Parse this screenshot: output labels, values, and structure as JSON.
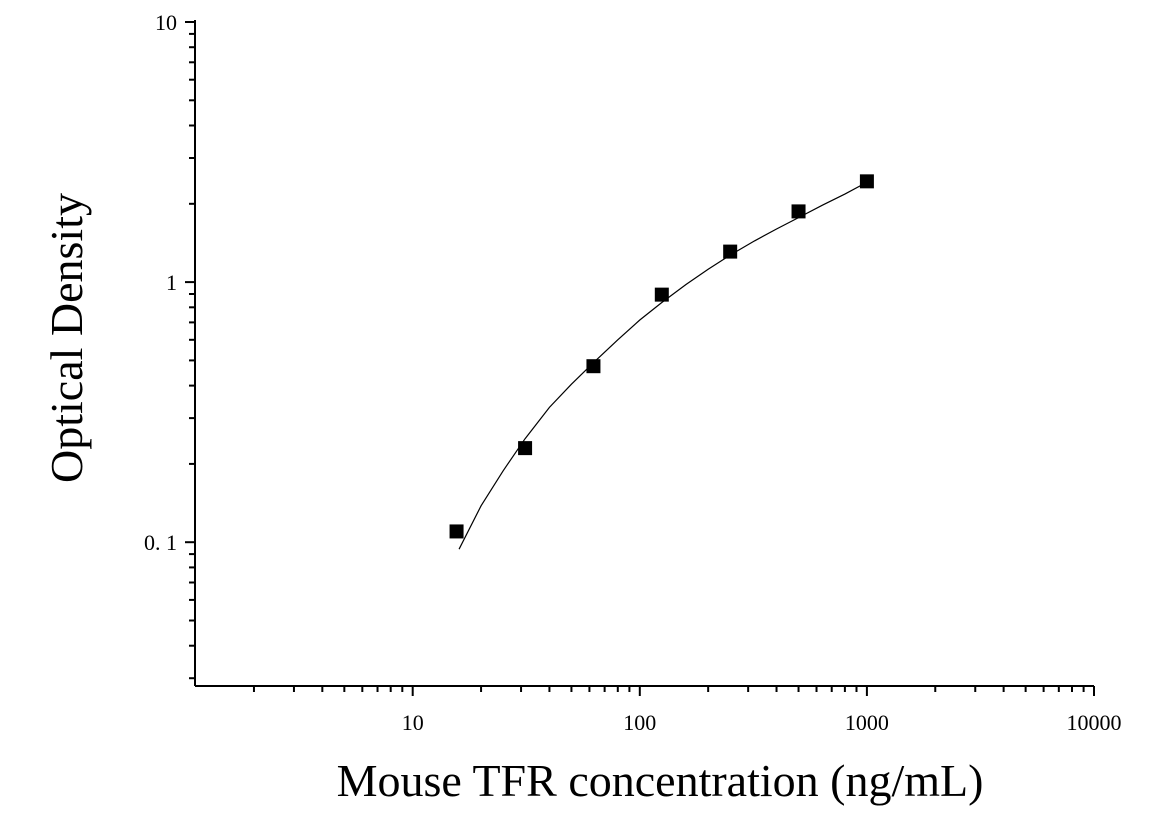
{
  "chart_data": {
    "type": "scatter",
    "title": "",
    "xlabel": "Mouse TFR concentration (ng/mL)",
    "ylabel": "Optical Density",
    "x_scale": "log",
    "y_scale": "log",
    "xlim": [
      1.1,
      10000
    ],
    "ylim": [
      0.028,
      10
    ],
    "x_ticks": [
      10,
      100,
      1000,
      10000
    ],
    "x_tick_labels": [
      "10",
      "100",
      "1000",
      "10000"
    ],
    "y_ticks": [
      0.1,
      1,
      10
    ],
    "y_tick_labels": [
      "0. 1",
      "1",
      "10"
    ],
    "grid": false,
    "legend": "none",
    "series": [
      {
        "marker": "square",
        "color": "#000000",
        "x": [
          15.6,
          31.25,
          62.5,
          125,
          250,
          500,
          1000
        ],
        "y": [
          0.11,
          0.23,
          0.475,
          0.895,
          1.31,
          1.87,
          2.44
        ]
      }
    ],
    "fit_curve": {
      "color": "#000000",
      "x": [
        16,
        20,
        25,
        31.25,
        40,
        50,
        62.5,
        80,
        100,
        125,
        160,
        200,
        250,
        320,
        400,
        500,
        640,
        800,
        1000
      ],
      "y": [
        0.094,
        0.138,
        0.188,
        0.25,
        0.33,
        0.405,
        0.49,
        0.6,
        0.715,
        0.835,
        0.98,
        1.12,
        1.27,
        1.44,
        1.6,
        1.77,
        1.98,
        2.18,
        2.42
      ]
    }
  }
}
